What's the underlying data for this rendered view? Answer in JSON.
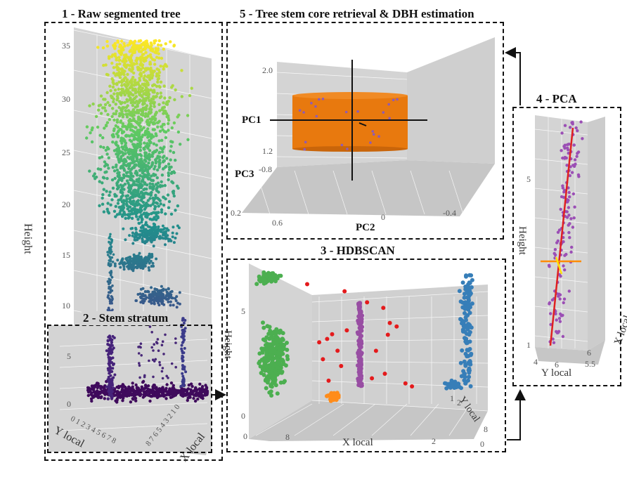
{
  "panels": {
    "p1": {
      "title": "1 - Raw segmented tree",
      "z_ticks": [
        "35",
        "30",
        "25",
        "20",
        "15",
        "10"
      ],
      "height_label": "Height",
      "y_label": "Y local",
      "x_label": "X local",
      "y_ticks": "0 1 2 3 4 5 6 7 8",
      "x_ticks": "8 7 6 5 4 3 2 1 0"
    },
    "p2": {
      "title": "2 - Stem stratum",
      "z_ticks": [
        "5",
        "0"
      ]
    },
    "p3": {
      "title": "3 - HDBSCAN",
      "height_label": "Height",
      "z_ticks": [
        "5",
        "0"
      ],
      "x_label": "X local",
      "x_ticks": [
        "8",
        "2",
        "0"
      ],
      "y_label": "Y local",
      "y_ticks": [
        "1",
        "2",
        "8"
      ],
      "corner_tick": "0"
    },
    "p4": {
      "title": "4 - PCA",
      "height_label": "Height",
      "z_ticks": [
        "5",
        "1"
      ],
      "y_label": "Y local",
      "y_ticks": [
        "4",
        "6"
      ],
      "x_label": "X local",
      "x_ticks": [
        "6",
        "5.5"
      ]
    },
    "p5": {
      "title": "5 - Tree stem core retrieval & DBH estimation",
      "pc1": "PC1",
      "pc2": "PC2",
      "pc3": "PC3",
      "z_ticks": [
        "2.0",
        "1.2"
      ],
      "pc3_tick": "-0.8",
      "pc2_ticks": [
        "0.2",
        "0.6",
        "0",
        "-0.4"
      ]
    }
  },
  "colors": {
    "pane": "#d4d4d4",
    "floor": "#c4c4c4",
    "viridis": [
      "#440154",
      "#3b528b",
      "#21918c",
      "#5ec962",
      "#fde725"
    ],
    "cluster_green": "#4caf50",
    "cluster_red": "#e41a1c",
    "cluster_purple": "#984ea3",
    "cluster_blue": "#377eb8",
    "cluster_orange": "#ff8c1a",
    "cylinder": "#e8790e",
    "pca_axis_red": "#e02020",
    "pca_axis_orange": "#ff8c00",
    "pca_axis_yellow": "#ffe000"
  }
}
